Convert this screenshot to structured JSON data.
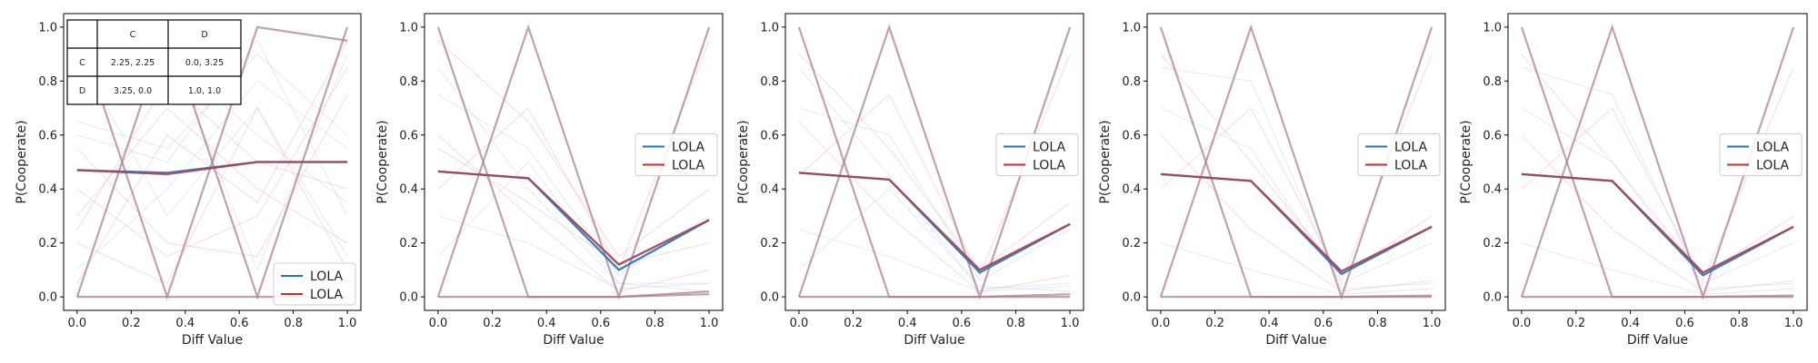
{
  "figure": {
    "axis_labels": {
      "xlabel": "Diff Value",
      "ylabel": "P(Cooperate)"
    },
    "colors": {
      "blue": "#1f77b4",
      "red": "#d62728",
      "mean": "#a2475a",
      "bg_blue": "#c6d6ee",
      "bg_red": "#f4b8bc"
    }
  },
  "payoff_table": {
    "col_headers": [
      "C",
      "D"
    ],
    "rows": [
      {
        "label": "C",
        "cells": [
          "2.25, 2.25",
          "0.0, 3.25"
        ]
      },
      {
        "label": "D",
        "cells": [
          "3.25, 0.0",
          "1.0, 1.0"
        ]
      }
    ]
  },
  "chart_data": [
    {
      "type": "line",
      "x": [
        0.0,
        0.333,
        0.667,
        1.0
      ],
      "xlabel": "Diff Value",
      "ylabel": "P(Cooperate)",
      "xlim": [
        -0.05,
        1.05
      ],
      "ylim": [
        -0.05,
        1.05
      ],
      "xticks": [
        "0.0",
        "0.2",
        "0.4",
        "0.6",
        "0.8",
        "1.0"
      ],
      "yticks": [
        "0.0",
        "0.2",
        "0.4",
        "0.6",
        "0.8",
        "1.0"
      ],
      "legend": {
        "placement": "lower right",
        "entries": [
          {
            "label": "LOLA",
            "color": "#1f77b4"
          },
          {
            "label": "LOLA",
            "color": "#d62728"
          }
        ]
      },
      "series": [
        {
          "name": "LOLA",
          "color": "#1f77b4",
          "values": [
            0.47,
            0.46,
            0.5,
            0.5
          ]
        },
        {
          "name": "LOLA",
          "color": "#d62728",
          "values": [
            0.47,
            0.455,
            0.5,
            0.5
          ]
        }
      ],
      "highlight_runs": [
        [
          1.0,
          0.0,
          1.0,
          0.95
        ],
        [
          0.0,
          1.0,
          0.0,
          1.0
        ],
        [
          0.0,
          0.0,
          0.0,
          0.0
        ]
      ],
      "faint_runs": [
        [
          0.6,
          0.5,
          0.95,
          0.3
        ],
        [
          0.2,
          0.05,
          0.7,
          0.1
        ],
        [
          0.85,
          0.95,
          0.1,
          0.9
        ],
        [
          0.3,
          0.7,
          0.4,
          0.2
        ],
        [
          0.1,
          0.4,
          0.8,
          0.55
        ],
        [
          0.55,
          0.2,
          0.15,
          0.75
        ],
        [
          0.75,
          0.9,
          0.6,
          0.35
        ],
        [
          0.4,
          0.15,
          0.3,
          0.85
        ],
        [
          0.65,
          0.55,
          0.9,
          0.6
        ],
        [
          0.25,
          0.8,
          0.5,
          0.4
        ],
        [
          0.9,
          0.3,
          0.7,
          0.15
        ],
        [
          0.05,
          0.6,
          0.35,
          0.95
        ]
      ],
      "payoff_inset": true
    },
    {
      "type": "line",
      "x": [
        0.0,
        0.333,
        0.667,
        1.0
      ],
      "xlabel": "Diff Value",
      "ylabel": "P(Cooperate)",
      "xlim": [
        -0.05,
        1.05
      ],
      "ylim": [
        -0.05,
        1.05
      ],
      "xticks": [
        "0.0",
        "0.2",
        "0.4",
        "0.6",
        "0.8",
        "1.0"
      ],
      "yticks": [
        "0.0",
        "0.2",
        "0.4",
        "0.6",
        "0.8",
        "1.0"
      ],
      "legend": {
        "placement": "center right",
        "entries": [
          {
            "label": "LOLA",
            "color": "#1f77b4"
          },
          {
            "label": "LOLA",
            "color": "#d62728"
          }
        ]
      },
      "series": [
        {
          "name": "LOLA",
          "color": "#1f77b4",
          "values": [
            0.465,
            0.44,
            0.1,
            0.285
          ]
        },
        {
          "name": "LOLA",
          "color": "#d62728",
          "values": [
            0.465,
            0.44,
            0.12,
            0.285
          ]
        }
      ],
      "highlight_runs": [
        [
          1.0,
          0.0,
          0.0,
          0.02
        ],
        [
          0.0,
          1.0,
          0.0,
          1.0
        ],
        [
          0.0,
          0.0,
          0.0,
          0.01
        ]
      ],
      "faint_runs": [
        [
          0.85,
          0.4,
          0.05,
          0.05
        ],
        [
          0.6,
          0.3,
          0.02,
          0.1
        ],
        [
          0.75,
          0.55,
          0.08,
          0.3
        ],
        [
          0.4,
          0.7,
          0.1,
          0.95
        ],
        [
          0.3,
          0.2,
          0.03,
          0.05
        ],
        [
          0.95,
          0.65,
          0.15,
          0.4
        ],
        [
          0.15,
          0.5,
          0.05,
          0.02
        ],
        [
          0.55,
          0.35,
          0.12,
          0.2
        ]
      ],
      "payoff_inset": false
    },
    {
      "type": "line",
      "x": [
        0.0,
        0.333,
        0.667,
        1.0
      ],
      "xlabel": "Diff Value",
      "ylabel": "P(Cooperate)",
      "xlim": [
        -0.05,
        1.05
      ],
      "ylim": [
        -0.05,
        1.05
      ],
      "xticks": [
        "0.0",
        "0.2",
        "0.4",
        "0.6",
        "0.8",
        "1.0"
      ],
      "yticks": [
        "0.0",
        "0.2",
        "0.4",
        "0.6",
        "0.8",
        "1.0"
      ],
      "legend": {
        "placement": "center right",
        "entries": [
          {
            "label": "LOLA",
            "color": "#1f77b4"
          },
          {
            "label": "LOLA",
            "color": "#d62728"
          }
        ]
      },
      "series": [
        {
          "name": "LOLA",
          "color": "#1f77b4",
          "values": [
            0.46,
            0.435,
            0.09,
            0.27
          ]
        },
        {
          "name": "LOLA",
          "color": "#d62728",
          "values": [
            0.46,
            0.435,
            0.1,
            0.27
          ]
        }
      ],
      "highlight_runs": [
        [
          1.0,
          0.0,
          0.0,
          0.01
        ],
        [
          0.0,
          1.0,
          0.0,
          1.0
        ],
        [
          0.0,
          0.0,
          0.0,
          0.0
        ]
      ],
      "faint_runs": [
        [
          0.85,
          0.45,
          0.03,
          0.05
        ],
        [
          0.65,
          0.3,
          0.02,
          0.08
        ],
        [
          0.7,
          0.6,
          0.06,
          0.25
        ],
        [
          0.45,
          0.75,
          0.08,
          0.9
        ],
        [
          0.25,
          0.15,
          0.02,
          0.04
        ],
        [
          0.9,
          0.55,
          0.1,
          0.35
        ],
        [
          0.1,
          0.4,
          0.04,
          0.02
        ]
      ],
      "payoff_inset": false
    },
    {
      "type": "line",
      "x": [
        0.0,
        0.333,
        0.667,
        1.0
      ],
      "xlabel": "Diff Value",
      "ylabel": "P(Cooperate)",
      "xlim": [
        -0.05,
        1.05
      ],
      "ylim": [
        -0.05,
        1.05
      ],
      "xticks": [
        "0.0",
        "0.2",
        "0.4",
        "0.6",
        "0.8",
        "1.0"
      ],
      "yticks": [
        "0.0",
        "0.2",
        "0.4",
        "0.6",
        "0.8",
        "1.0"
      ],
      "legend": {
        "placement": "center right",
        "entries": [
          {
            "label": "LOLA",
            "color": "#1f77b4"
          },
          {
            "label": "LOLA",
            "color": "#d62728"
          }
        ]
      },
      "series": [
        {
          "name": "LOLA",
          "color": "#1f77b4",
          "values": [
            0.455,
            0.43,
            0.085,
            0.26
          ]
        },
        {
          "name": "LOLA",
          "color": "#d62728",
          "values": [
            0.455,
            0.43,
            0.095,
            0.26
          ]
        }
      ],
      "highlight_runs": [
        [
          1.0,
          0.0,
          0.0,
          0.005
        ],
        [
          0.0,
          1.0,
          0.0,
          1.0
        ],
        [
          0.0,
          0.0,
          0.0,
          0.0
        ]
      ],
      "faint_runs": [
        [
          0.85,
          0.8,
          0.03,
          0.05
        ],
        [
          0.6,
          0.25,
          0.02,
          0.06
        ],
        [
          0.7,
          0.55,
          0.05,
          0.2
        ],
        [
          0.4,
          0.7,
          0.06,
          0.9
        ],
        [
          0.2,
          0.1,
          0.01,
          0.03
        ],
        [
          0.9,
          0.5,
          0.08,
          0.3
        ]
      ],
      "payoff_inset": false
    },
    {
      "type": "line",
      "x": [
        0.0,
        0.333,
        0.667,
        1.0
      ],
      "xlabel": "Diff Value",
      "ylabel": "P(Cooperate)",
      "xlim": [
        -0.05,
        1.05
      ],
      "ylim": [
        -0.05,
        1.05
      ],
      "xticks": [
        "0.0",
        "0.2",
        "0.4",
        "0.6",
        "0.8",
        "1.0"
      ],
      "yticks": [
        "0.0",
        "0.2",
        "0.4",
        "0.6",
        "0.8",
        "1.0"
      ],
      "legend": {
        "placement": "center right",
        "entries": [
          {
            "label": "LOLA",
            "color": "#1f77b4"
          },
          {
            "label": "LOLA",
            "color": "#d62728"
          }
        ]
      },
      "series": [
        {
          "name": "LOLA",
          "color": "#1f77b4",
          "values": [
            0.455,
            0.43,
            0.08,
            0.26
          ]
        },
        {
          "name": "LOLA",
          "color": "#d62728",
          "values": [
            0.455,
            0.43,
            0.09,
            0.26
          ]
        }
      ],
      "highlight_runs": [
        [
          1.0,
          0.0,
          0.0,
          0.005
        ],
        [
          0.0,
          1.0,
          0.0,
          1.0
        ],
        [
          0.0,
          0.0,
          0.0,
          0.0
        ]
      ],
      "faint_runs": [
        [
          0.85,
          0.75,
          0.03,
          0.05
        ],
        [
          0.6,
          0.25,
          0.02,
          0.06
        ],
        [
          0.7,
          0.5,
          0.05,
          0.2
        ],
        [
          0.4,
          0.7,
          0.06,
          0.85
        ],
        [
          0.2,
          0.1,
          0.01,
          0.03
        ],
        [
          0.9,
          0.5,
          0.08,
          0.3
        ]
      ],
      "payoff_inset": false
    }
  ]
}
